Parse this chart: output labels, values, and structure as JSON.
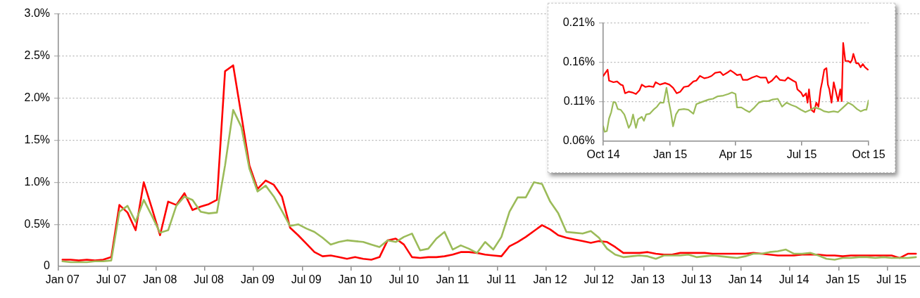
{
  "chart_data": [
    {
      "type": "line",
      "categories": [
        "Jan 07",
        null,
        null,
        null,
        null,
        null,
        "Jul 07",
        null,
        null,
        null,
        null,
        null,
        "Jan 08",
        null,
        null,
        null,
        null,
        null,
        "Jul 08",
        null,
        null,
        null,
        null,
        null,
        "Jan 09",
        null,
        null,
        null,
        null,
        null,
        "Jul 09",
        null,
        null,
        null,
        null,
        null,
        "Jan 10",
        null,
        null,
        null,
        null,
        null,
        "Jul 10",
        null,
        null,
        null,
        null,
        null,
        "Jan 11",
        null,
        null,
        null,
        null,
        null,
        "Jul 11",
        null,
        null,
        null,
        null,
        null,
        "Jan 12",
        null,
        null,
        null,
        null,
        null,
        "Jul 12",
        null,
        null,
        null,
        null,
        null,
        "Jan 13",
        null,
        null,
        null,
        null,
        null,
        "Jul 13",
        null,
        null,
        null,
        null,
        null,
        "Jan 14",
        null,
        null,
        null,
        null,
        null,
        "Jul 14",
        null,
        null,
        null,
        null,
        null,
        "Jan 15",
        null,
        null,
        null,
        null,
        null,
        "Jul 15",
        null,
        null,
        null
      ],
      "series": [
        {
          "color": "#9bbb59",
          "values": [
            0.06,
            0.05,
            0.05,
            0.05,
            0.06,
            0.06,
            0.07,
            0.65,
            0.72,
            0.53,
            0.79,
            0.6,
            0.4,
            0.43,
            0.72,
            0.83,
            0.79,
            0.65,
            0.63,
            0.64,
            1.2,
            1.86,
            1.66,
            1.16,
            0.89,
            0.96,
            0.83,
            0.66,
            0.48,
            0.5,
            0.45,
            0.41,
            0.34,
            0.26,
            0.29,
            0.31,
            0.3,
            0.29,
            0.26,
            0.23,
            0.31,
            0.29,
            0.35,
            0.39,
            0.19,
            0.21,
            0.33,
            0.41,
            0.2,
            0.25,
            0.21,
            0.16,
            0.29,
            0.2,
            0.35,
            0.65,
            0.82,
            0.82,
            1.0,
            0.98,
            0.77,
            0.63,
            0.41,
            0.4,
            0.39,
            0.42,
            0.34,
            0.21,
            0.14,
            0.11,
            0.12,
            0.13,
            0.12,
            0.09,
            0.13,
            0.13,
            0.13,
            0.14,
            0.11,
            0.12,
            0.13,
            0.12,
            0.11,
            0.1,
            0.12,
            0.15,
            0.15,
            0.17,
            0.18,
            0.2,
            0.15,
            0.15,
            0.16,
            0.13,
            0.09,
            0.08,
            0.1,
            0.1,
            0.11,
            0.11,
            0.1,
            0.11,
            0.1,
            0.1,
            0.1,
            0.11
          ]
        },
        {
          "color": "#ff0000",
          "values": [
            0.08,
            0.08,
            0.07,
            0.08,
            0.07,
            0.08,
            0.11,
            0.73,
            0.64,
            0.43,
            1.0,
            0.69,
            0.37,
            0.77,
            0.73,
            0.87,
            0.67,
            0.71,
            0.74,
            0.79,
            2.32,
            2.39,
            1.8,
            1.2,
            0.92,
            1.02,
            0.97,
            0.83,
            0.46,
            0.37,
            0.27,
            0.17,
            0.12,
            0.13,
            0.11,
            0.09,
            0.11,
            0.09,
            0.08,
            0.11,
            0.31,
            0.33,
            0.26,
            0.11,
            0.1,
            0.11,
            0.11,
            0.12,
            0.14,
            0.17,
            0.17,
            0.16,
            0.14,
            0.13,
            0.12,
            0.24,
            0.29,
            0.35,
            0.42,
            0.49,
            0.44,
            0.37,
            0.34,
            0.32,
            0.3,
            0.28,
            0.3,
            0.29,
            0.23,
            0.16,
            0.16,
            0.16,
            0.17,
            0.15,
            0.14,
            0.14,
            0.16,
            0.16,
            0.16,
            0.16,
            0.15,
            0.15,
            0.15,
            0.15,
            0.15,
            0.16,
            0.15,
            0.14,
            0.13,
            0.13,
            0.13,
            0.14,
            0.14,
            0.14,
            0.13,
            0.13,
            0.12,
            0.13,
            0.13,
            0.13,
            0.13,
            0.13,
            0.13,
            0.1,
            0.15,
            0.15
          ]
        }
      ],
      "ylim": [
        0,
        3.0
      ],
      "yticks": [
        0,
        {
          "value": 0.5,
          "label": "0.5%"
        },
        {
          "value": 1.0,
          "label": "1.0%"
        },
        {
          "value": 1.5,
          "label": "1.5%"
        },
        {
          "value": 2.0,
          "label": "2.0%"
        },
        {
          "value": 2.5,
          "label": "2.5%"
        },
        {
          "value": 3.0,
          "label": "3.0%"
        }
      ],
      "grid": "y"
    },
    {
      "type": "line",
      "series": [
        {
          "color": "#9bbb59",
          "x": [
            "2014-10-01",
            "2014-10-03",
            "2014-10-06",
            "2014-10-09",
            "2014-10-12",
            "2014-10-15",
            "2014-10-18",
            "2014-10-21",
            "2014-10-25",
            "2014-10-30",
            "2014-11-02",
            "2014-11-05",
            "2014-11-08",
            "2014-11-11",
            "2014-11-15",
            "2014-11-18",
            "2014-11-23",
            "2014-11-26",
            "2014-11-29",
            "2014-12-04",
            "2014-12-09",
            "2014-12-14",
            "2014-12-18",
            "2014-12-23",
            "2014-12-27",
            "2014-12-30",
            "2015-01-02",
            "2015-01-05",
            "2015-01-09",
            "2015-01-13",
            "2015-01-20",
            "2015-01-26",
            "2015-02-02",
            "2015-02-06",
            "2015-02-11",
            "2015-02-17",
            "2015-02-23",
            "2015-03-01",
            "2015-03-07",
            "2015-03-15",
            "2015-03-22",
            "2015-03-27",
            "2015-04-01",
            "2015-04-03",
            "2015-04-09",
            "2015-04-14",
            "2015-04-20",
            "2015-04-27",
            "2015-05-03",
            "2015-05-09",
            "2015-05-16",
            "2015-05-22",
            "2015-05-29",
            "2015-06-04",
            "2015-06-10",
            "2015-06-17",
            "2015-06-23",
            "2015-06-30",
            "2015-07-06",
            "2015-07-13",
            "2015-07-19",
            "2015-07-26",
            "2015-08-01",
            "2015-08-07",
            "2015-08-14",
            "2015-08-20",
            "2015-08-27",
            "2015-09-03",
            "2015-09-09",
            "2015-09-15",
            "2015-09-20",
            "2015-09-25",
            "2015-09-28",
            "2015-10-01"
          ],
          "values": [
            0.079,
            0.072,
            0.073,
            0.089,
            0.097,
            0.11,
            0.109,
            0.101,
            0.1,
            0.094,
            0.086,
            0.077,
            0.082,
            0.094,
            0.077,
            0.088,
            0.091,
            0.086,
            0.094,
            0.095,
            0.1,
            0.104,
            0.109,
            0.109,
            0.128,
            0.111,
            0.097,
            0.079,
            0.094,
            0.1,
            0.101,
            0.1,
            0.095,
            0.107,
            0.109,
            0.111,
            0.113,
            0.114,
            0.117,
            0.118,
            0.12,
            0.122,
            0.12,
            0.103,
            0.103,
            0.1,
            0.097,
            0.103,
            0.109,
            0.111,
            0.111,
            0.113,
            0.114,
            0.104,
            0.109,
            0.106,
            0.104,
            0.1,
            0.097,
            0.1,
            0.103,
            0.101,
            0.098,
            0.097,
            0.098,
            0.097,
            0.103,
            0.109,
            0.106,
            0.101,
            0.098,
            0.1,
            0.1,
            0.112
          ]
        },
        {
          "color": "#ff0000",
          "x": [
            "2014-10-01",
            "2014-10-04",
            "2014-10-07",
            "2014-10-09",
            "2014-10-15",
            "2014-10-20",
            "2014-10-25",
            "2014-10-28",
            "2014-10-31",
            "2014-11-05",
            "2014-11-10",
            "2014-11-15",
            "2014-11-20",
            "2014-11-23",
            "2014-11-28",
            "2014-12-03",
            "2014-12-09",
            "2014-12-12",
            "2014-12-18",
            "2014-12-25",
            "2014-12-31",
            "2015-01-05",
            "2015-01-10",
            "2015-01-15",
            "2015-01-20",
            "2015-01-26",
            "2015-02-02",
            "2015-02-06",
            "2015-02-11",
            "2015-02-17",
            "2015-02-22",
            "2015-02-27",
            "2015-03-04",
            "2015-03-11",
            "2015-03-15",
            "2015-03-22",
            "2015-03-25",
            "2015-03-30",
            "2015-04-03",
            "2015-04-08",
            "2015-04-11",
            "2015-04-17",
            "2015-04-24",
            "2015-04-30",
            "2015-05-05",
            "2015-05-13",
            "2015-05-16",
            "2015-05-21",
            "2015-05-27",
            "2015-06-01",
            "2015-06-08",
            "2015-06-12",
            "2015-06-19",
            "2015-06-23",
            "2015-06-25",
            "2015-06-30",
            "2015-07-03",
            "2015-07-07",
            "2015-07-09",
            "2015-07-11",
            "2015-07-14",
            "2015-07-18",
            "2015-07-21",
            "2015-07-24",
            "2015-07-27",
            "2015-07-29",
            "2015-08-01",
            "2015-08-04",
            "2015-08-06",
            "2015-08-08",
            "2015-08-11",
            "2015-08-14",
            "2015-08-17",
            "2015-08-20",
            "2015-08-23",
            "2015-08-25",
            "2015-08-27",
            "2015-08-30",
            "2015-09-03",
            "2015-09-06",
            "2015-09-08",
            "2015-09-10",
            "2015-09-14",
            "2015-09-17",
            "2015-09-20",
            "2015-09-23",
            "2015-09-26",
            "2015-09-30"
          ],
          "values": [
            0.143,
            0.147,
            0.151,
            0.137,
            0.135,
            0.136,
            0.132,
            0.131,
            0.121,
            0.123,
            0.122,
            0.12,
            0.125,
            0.132,
            0.129,
            0.13,
            0.129,
            0.135,
            0.132,
            0.134,
            0.132,
            0.128,
            0.121,
            0.123,
            0.129,
            0.13,
            0.136,
            0.137,
            0.143,
            0.14,
            0.141,
            0.143,
            0.147,
            0.148,
            0.144,
            0.148,
            0.15,
            0.147,
            0.144,
            0.145,
            0.138,
            0.138,
            0.141,
            0.143,
            0.141,
            0.141,
            0.134,
            0.137,
            0.143,
            0.138,
            0.137,
            0.141,
            0.137,
            0.135,
            0.126,
            0.122,
            0.117,
            0.121,
            0.109,
            0.126,
            0.1,
            0.097,
            0.109,
            0.104,
            0.126,
            0.135,
            0.151,
            0.153,
            0.132,
            0.126,
            0.109,
            0.135,
            0.123,
            0.111,
            0.126,
            0.111,
            0.185,
            0.162,
            0.162,
            0.16,
            0.163,
            0.171,
            0.159,
            0.159,
            0.154,
            0.158,
            0.154,
            0.151
          ]
        }
      ],
      "xlim": [
        "2014-10-01",
        "2015-10-01"
      ],
      "xticks": [
        {
          "value": "2014-10-01",
          "label": "Oct 14"
        },
        {
          "value": "2015-01-01",
          "label": "Jan 15"
        },
        {
          "value": "2015-04-01",
          "label": "Apr 15"
        },
        {
          "value": "2015-07-01",
          "label": "Jul 15"
        },
        {
          "value": "2015-10-01",
          "label": "Oct 15"
        }
      ],
      "ylim": [
        0.06,
        0.21
      ],
      "yticks": [
        {
          "value": 0.06,
          "label": "0.06%"
        },
        {
          "value": 0.11,
          "label": "0.11%"
        },
        {
          "value": 0.16,
          "label": "0.16%"
        },
        {
          "value": 0.21,
          "label": "0.21%"
        }
      ],
      "grid": "y"
    }
  ]
}
